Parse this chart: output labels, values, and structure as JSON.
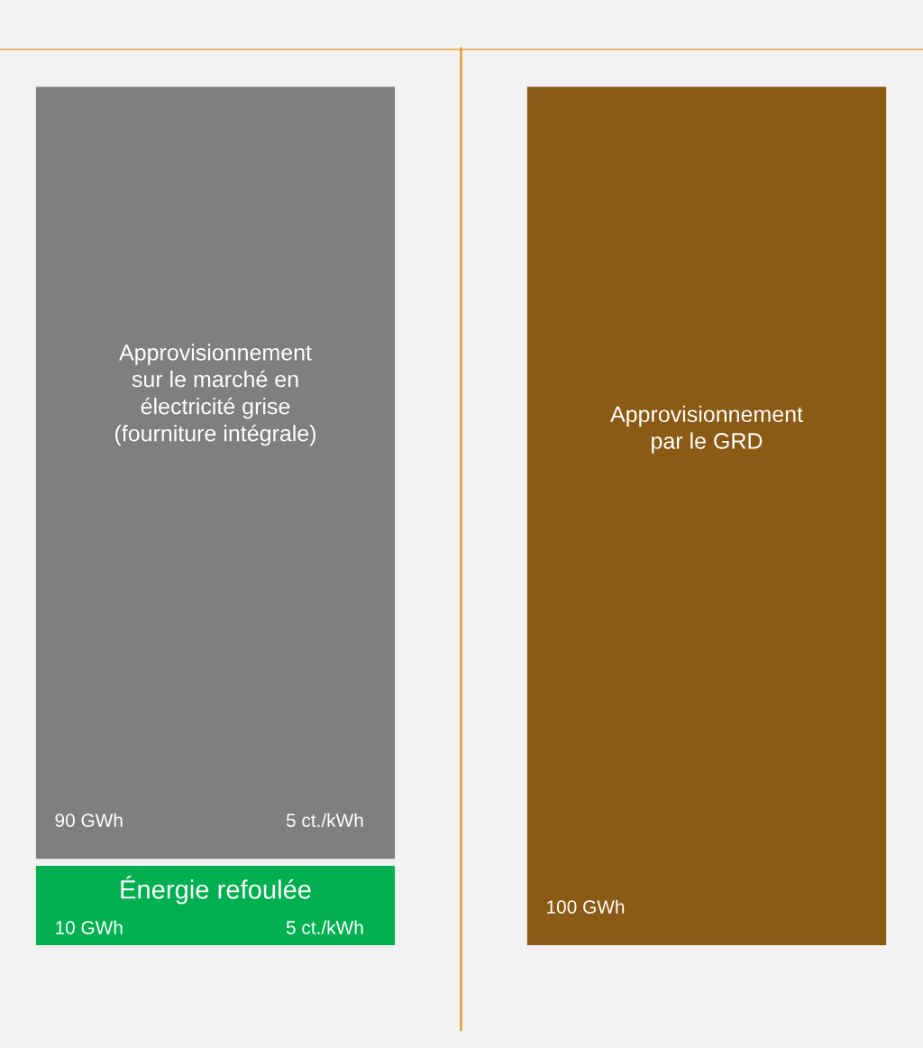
{
  "chart_data": {
    "type": "bar",
    "stacked": true,
    "categories": [
      null,
      null
    ],
    "series": [
      {
        "name": "Énergie refoulée",
        "color": "#00b050",
        "values": [
          10,
          null
        ],
        "value_labels": [
          "10 GWh",
          null
        ]
      },
      {
        "name": "Approvisionnement\nsur le marché en\nélectricité grise\n(fourniture intégrale)",
        "color": "#7f7f7f",
        "values": [
          90,
          null
        ],
        "value_labels": [
          "90 GWh",
          null
        ]
      },
      {
        "name": "Approvisionnement\npar le GRD",
        "color": "#8b5a14",
        "values": [
          null,
          100
        ],
        "value_labels": [
          null,
          "100 GWh"
        ]
      }
    ],
    "annotations": [
      "5 ct./kWh",
      "5 ct./kWh"
    ],
    "ref_lines": [
      {
        "axis": "y",
        "value": 104,
        "color": "#e8a33d"
      }
    ],
    "legend": false
  }
}
